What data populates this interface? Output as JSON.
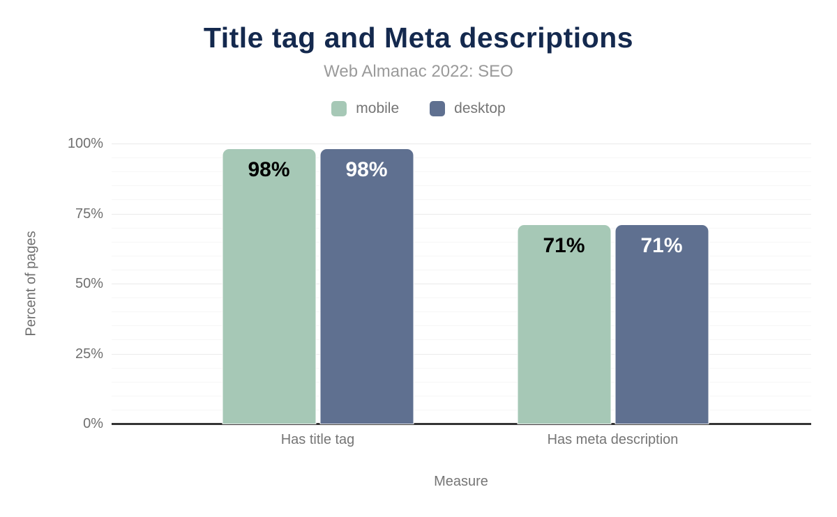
{
  "chart_data": {
    "type": "bar",
    "title": "Title tag and Meta descriptions",
    "subtitle": "Web Almanac 2022: SEO",
    "categories": [
      "Has title tag",
      "Has meta description"
    ],
    "series": [
      {
        "name": "mobile",
        "color": "#a6c8b6",
        "label_text_color": "#000000",
        "values": [
          98,
          71
        ]
      },
      {
        "name": "desktop",
        "color": "#5f7090",
        "label_text_color": "#ffffff",
        "values": [
          98,
          71
        ]
      }
    ],
    "value_suffix": "%",
    "xlabel": "Measure",
    "ylabel": "Percent of pages",
    "ylim": [
      0,
      100
    ],
    "y_ticks": [
      {
        "value": 0,
        "label": "0%"
      },
      {
        "value": 25,
        "label": "25%"
      },
      {
        "value": 50,
        "label": "50%"
      },
      {
        "value": 75,
        "label": "75%"
      },
      {
        "value": 100,
        "label": "100%"
      }
    ],
    "minor_grid_step": 5,
    "major_grid_step": 25,
    "grid": "horizontal",
    "legend_position": "top"
  },
  "colors": {
    "background": "#ffffff",
    "title_text": "#14294e",
    "subtitle_text": "#9a9a9a",
    "axis_tick_text": "#6f6f6f",
    "category_text": "#757575",
    "axis_line": "#333333",
    "major_grid": "#eaeaea",
    "minor_grid": "#f6f6f6"
  }
}
